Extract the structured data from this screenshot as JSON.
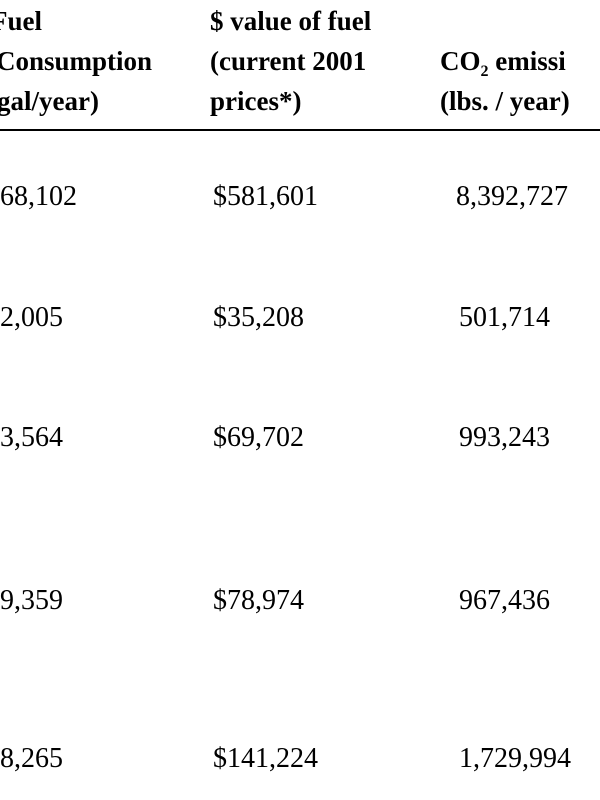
{
  "table": {
    "header": [
      {
        "lines": [
          "Fuel",
          "Consumption",
          "gal/year)"
        ]
      },
      {
        "lines": [
          "$ value of fuel",
          "(current 2001",
          "prices*)"
        ]
      },
      {
        "lines": [
          {
            "main": "CO",
            "sub": "2",
            "rest": " emissi"
          },
          "(lbs. / year)"
        ]
      }
    ],
    "rows": [
      [
        "68,102",
        "$581,601",
        "8,392,727"
      ],
      [
        "2,005",
        "$35,208",
        "501,714"
      ],
      [
        "3,564",
        "$69,702",
        "993,243"
      ],
      [
        "9,359",
        "$78,974",
        "967,436"
      ],
      [
        "8,265",
        "$141,224",
        "1,729,994"
      ]
    ]
  }
}
